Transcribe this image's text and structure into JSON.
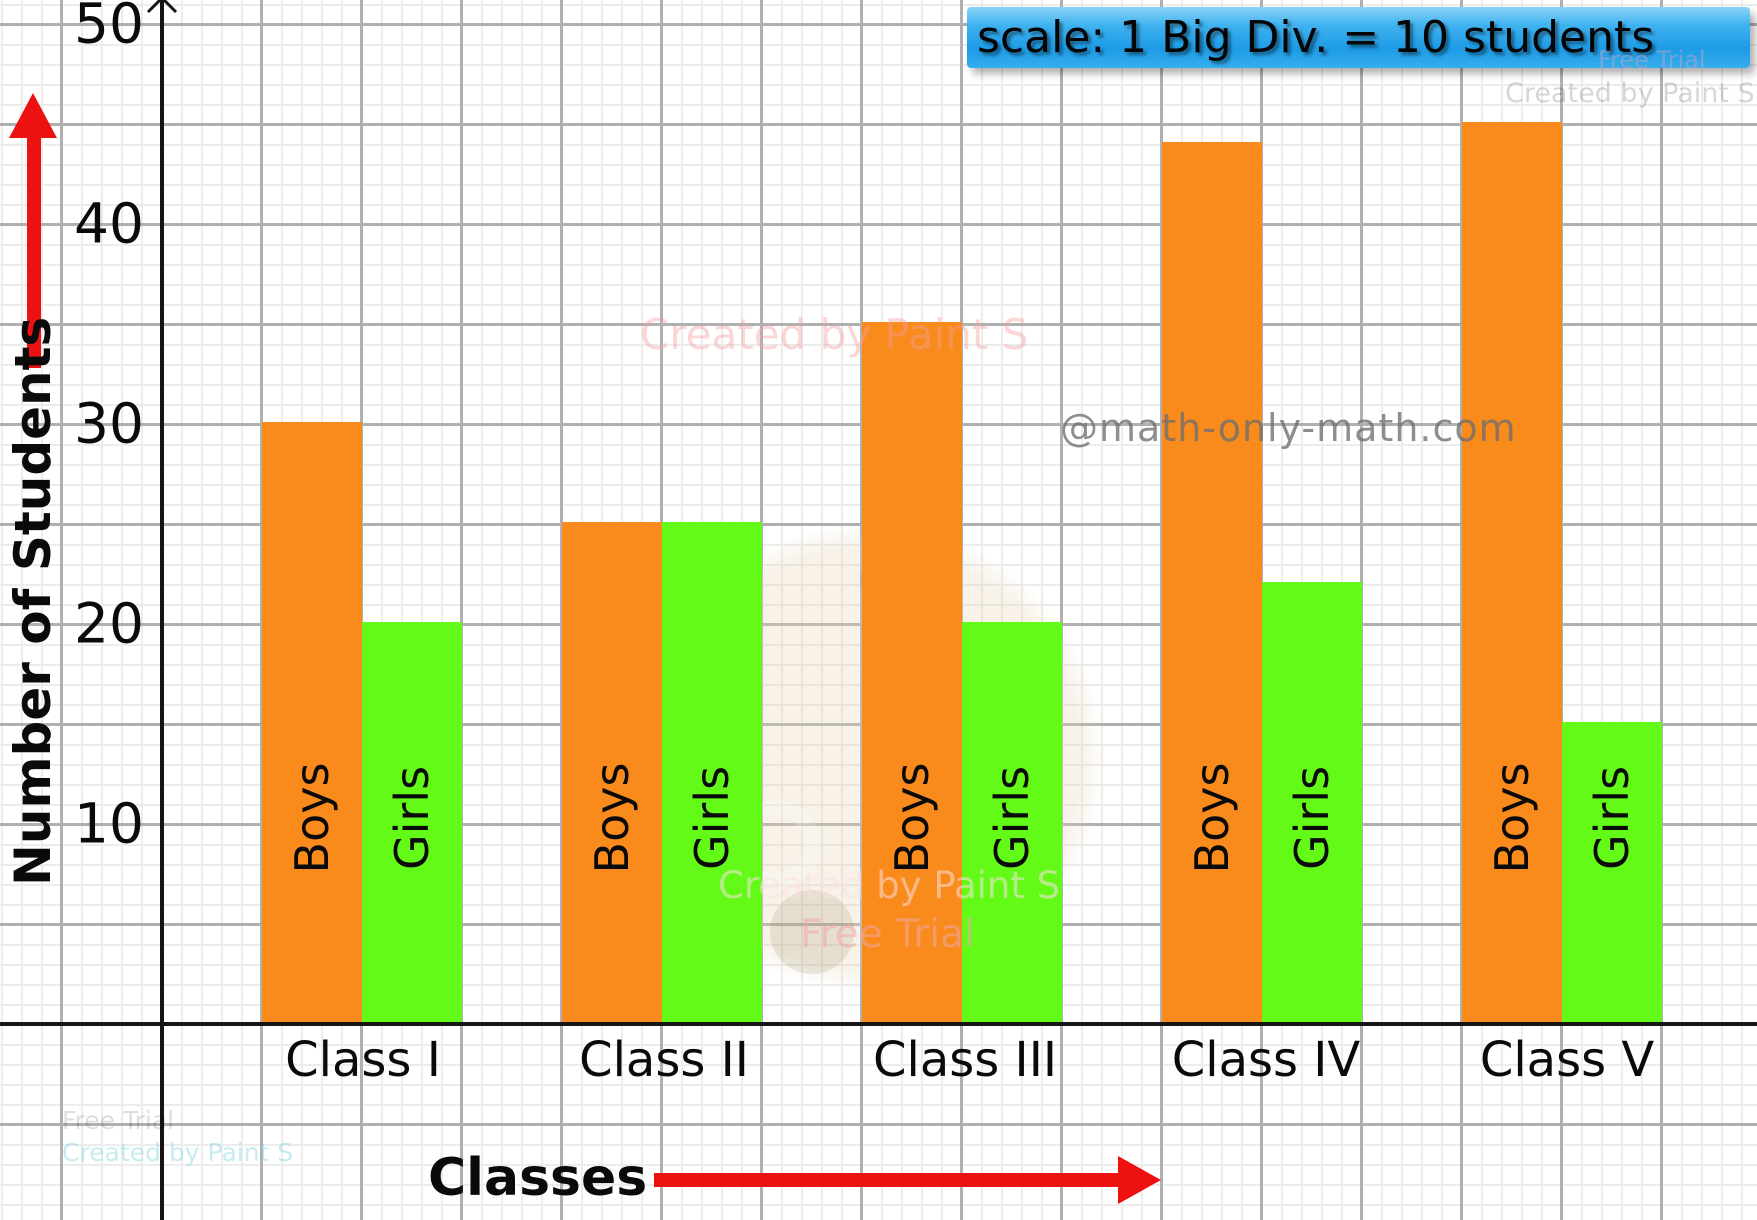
{
  "scale_box": {
    "text": "scale: 1 Big Div. = 10 students"
  },
  "y_axis": {
    "label": "Number of Students",
    "ticks": [
      "50",
      "40",
      "30",
      "20",
      "10"
    ]
  },
  "x_axis": {
    "label": "Classes"
  },
  "chart_data": {
    "type": "bar",
    "categories": [
      "Class I",
      "Class II",
      "Class III",
      "Class IV",
      "Class V"
    ],
    "series": [
      {
        "name": "Boys",
        "color": "#F98A1C",
        "values": [
          30,
          25,
          35,
          44,
          45
        ]
      },
      {
        "name": "Girls",
        "color": "#63FA18",
        "values": [
          20,
          25,
          20,
          22,
          15
        ]
      }
    ],
    "title": "",
    "xlabel": "Classes",
    "ylabel": "Number of Students",
    "ylim": [
      0,
      50
    ],
    "y_tick_step": 10,
    "grid": true,
    "legend_position": "none",
    "scale_note": "1 Big Div. = 10 students"
  },
  "watermarks": {
    "top_right_free_trial": "Free Trial",
    "top_right_created": "Created by Paint S",
    "upper_center_created": "Created by Paint S",
    "site": "@math-only-math.com",
    "mid_created": "Created by Paint S",
    "mid_free_trial": "Free Trial",
    "bottom_left_free_trial": "Free Trial",
    "bottom_left_created": "Created by Paint S"
  },
  "colors": {
    "boys": "#F98A1C",
    "girls": "#63FA18",
    "arrow_red": "#EE1111",
    "axis_black": "#151515",
    "grid_minor": "#ECECEC",
    "grid_major": "#B0B0B0",
    "scale_box_top": "#8AD4F7",
    "scale_box_bottom": "#1D9BE6"
  }
}
